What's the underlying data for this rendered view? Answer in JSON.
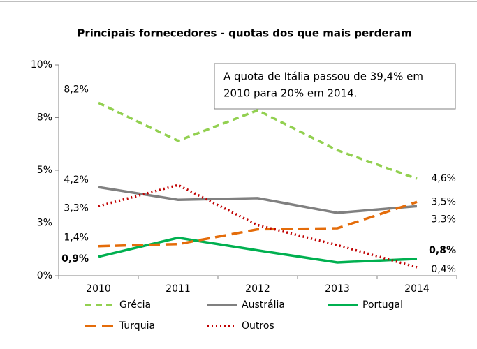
{
  "chart_data": {
    "type": "line",
    "title": "Principais fornecedores - quotas dos que mais perderam",
    "annotation": [
      "A quota de  Itália passou de 39,4% em",
      "2010 para 20% em 2014."
    ],
    "categories": [
      "2010",
      "2011",
      "2012",
      "2013",
      "2014"
    ],
    "ylim": [
      0,
      10
    ],
    "yticks": [
      {
        "value": 0,
        "label": "0%"
      },
      {
        "value": 2.5,
        "label": "3%"
      },
      {
        "value": 5,
        "label": "5%"
      },
      {
        "value": 7.5,
        "label": "8%"
      },
      {
        "value": 10,
        "label": "10%"
      }
    ],
    "grid": false,
    "legend": "bottom",
    "series": [
      {
        "name": "Grécia",
        "color": "#92d050",
        "dash": "dashed",
        "values": [
          8.2,
          6.4,
          7.85,
          5.95,
          4.6
        ],
        "value_labels": [
          "8,2%",
          null,
          null,
          null,
          "4,6%"
        ]
      },
      {
        "name": "Austrália",
        "color": "#808080",
        "dash": "solid",
        "values": [
          4.2,
          3.6,
          3.68,
          2.98,
          3.3
        ],
        "value_labels": [
          "4,2%",
          null,
          null,
          null,
          "3,3%"
        ]
      },
      {
        "name": "Portugal",
        "color": "#00b050",
        "dash": "solid",
        "values": [
          0.9,
          1.8,
          1.2,
          0.63,
          0.8
        ],
        "value_labels": [
          "0,9%",
          null,
          null,
          null,
          "0,8%"
        ]
      },
      {
        "name": "Turquia",
        "color": "#e46c0a",
        "dash": "long-dash",
        "values": [
          1.4,
          1.5,
          2.2,
          2.25,
          3.5
        ],
        "value_labels": [
          "1,4%",
          null,
          null,
          null,
          "3,5%"
        ]
      },
      {
        "name": "Outros",
        "color": "#c00000",
        "dash": "dotted",
        "values": [
          3.3,
          4.3,
          2.4,
          1.45,
          0.4
        ],
        "value_labels": [
          "3,3%",
          null,
          null,
          null,
          "0,4%"
        ]
      }
    ]
  }
}
